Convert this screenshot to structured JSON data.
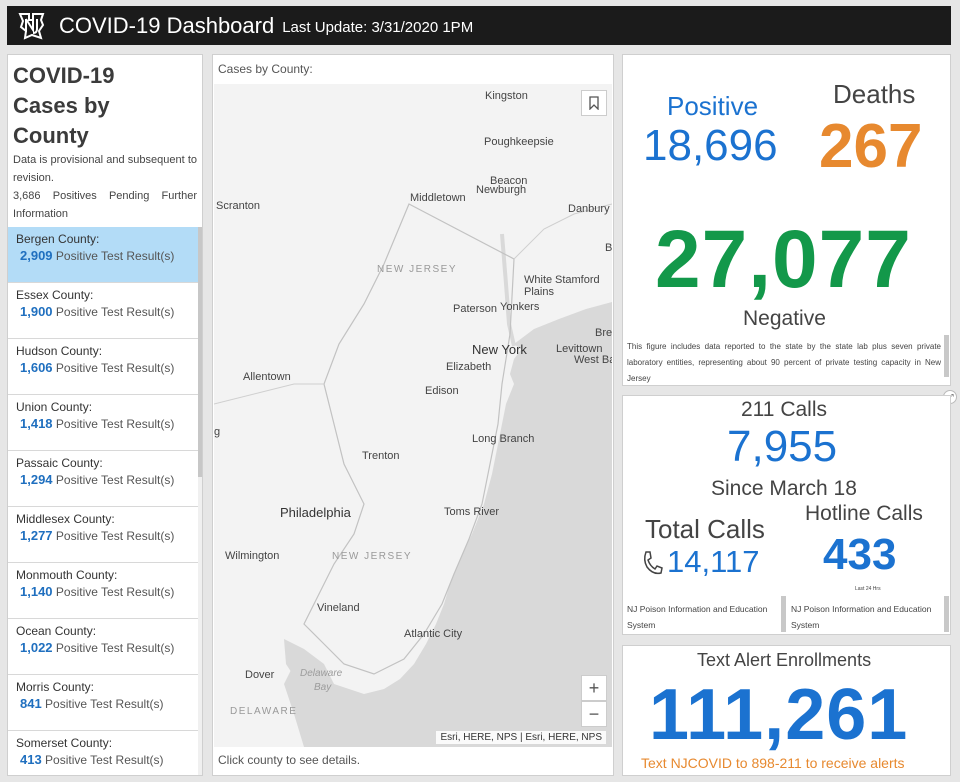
{
  "header": {
    "title": "COVID-19 Dashboard",
    "last_update": "Last Update: 3/31/2020 1PM",
    "logo_icon": "nj-state-logo"
  },
  "left_panel": {
    "title_line1": "COVID-19",
    "title_line2": "Cases by",
    "title_line3": "County",
    "note": "Data is provisional and subsequent to revision.",
    "pending": "3,686 Positives Pending Further Information",
    "counties": [
      {
        "name": "Bergen County:",
        "count": "2,909",
        "suffix": "Positive Test Result(s)"
      },
      {
        "name": "Essex County:",
        "count": "1,900",
        "suffix": "Positive Test Result(s)"
      },
      {
        "name": "Hudson County:",
        "count": "1,606",
        "suffix": "Positive Test Result(s)"
      },
      {
        "name": "Union County:",
        "count": "1,418",
        "suffix": "Positive Test Result(s)"
      },
      {
        "name": "Passaic County:",
        "count": "1,294",
        "suffix": "Positive Test Result(s)"
      },
      {
        "name": "Middlesex County:",
        "count": "1,277",
        "suffix": "Positive Test Result(s)"
      },
      {
        "name": "Monmouth County:",
        "count": "1,140",
        "suffix": "Positive Test Result(s)"
      },
      {
        "name": "Ocean County:",
        "count": "1,022",
        "suffix": "Positive Test Result(s)"
      },
      {
        "name": "Morris County:",
        "count": "841",
        "suffix": "Positive Test Result(s)"
      },
      {
        "name": "Somerset County:",
        "count": "413",
        "suffix": "Positive Test Result(s)"
      }
    ]
  },
  "map": {
    "title": "Cases by County:",
    "footer": "Click county to see details.",
    "attribution": "Esri, HERE, NPS | Esri, HERE, NPS",
    "zoom_in": "+",
    "zoom_out": "−",
    "places": {
      "kingston": "Kingston",
      "poughkeepsie": "Poughkeepsie",
      "beacon": "Beacon",
      "newburgh": "Newburgh",
      "middletown": "Middletown",
      "danbury": "Danbury",
      "scranton": "Scranton",
      "new_jersey_top": "NEW JERSEY",
      "white_plains_1": "White",
      "stamford": "Stamford",
      "white_plains_2": "Plains",
      "br": "Br",
      "paterson": "Paterson",
      "yonkers": "Yonkers",
      "bre": "Bre",
      "new_york": "New York",
      "levittown": "Levittown",
      "west_ba": "West Ba",
      "elizabeth": "Elizabeth",
      "allentown": "Allentown",
      "edison": "Edison",
      "g": "g",
      "long_branch": "Long Branch",
      "trenton": "Trenton",
      "philadelphia": "Philadelphia",
      "toms_river": "Toms River",
      "wilmington": "Wilmington",
      "new_jersey_bottom": "NEW JERSEY",
      "vineland": "Vineland",
      "atlantic_city": "Atlantic City",
      "dover": "Dover",
      "delaware_bay_1": "Delaware",
      "delaware_bay_2": "Bay",
      "delaware": "DELAWARE"
    }
  },
  "stats": {
    "positive_label": "Positive",
    "positive_value": "18,696",
    "deaths_label": "Deaths",
    "deaths_value": "267",
    "negative_value": "27,077",
    "negative_label": "Negative",
    "negative_note": "This figure includes data reported to the state by the state lab plus seven private laboratory entities, representing about 90 percent of private testing capacity in New Jersey"
  },
  "calls": {
    "title": "211 Calls",
    "value": "7,955",
    "since": "Since March 18",
    "total_label": "Total Calls",
    "total_value": "14,117",
    "hotline_label": "Hotline Calls",
    "hotline_value": "433",
    "last24": "Last 24 Hrs",
    "source_left": "NJ Poison Information and Education System",
    "source_right": "NJ Poison Information and Education System"
  },
  "text_alerts": {
    "title": "Text Alert Enrollments",
    "value": "111,261",
    "cta": "Text NJCOVID to 898-211 to receive alerts"
  },
  "colors": {
    "blue": "#1b72d0",
    "orange": "#e7892f",
    "green": "#13984a",
    "selected_row": "#b3dcf7",
    "header_bg": "#1b1b1b"
  }
}
